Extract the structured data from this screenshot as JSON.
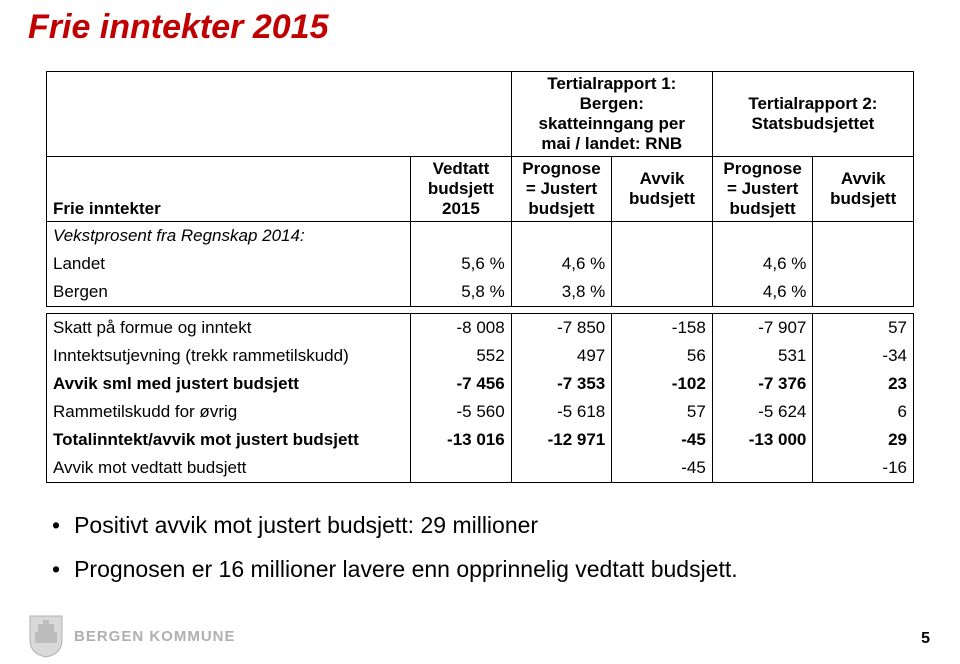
{
  "title": "Frie inntekter  2015",
  "table": {
    "header_row0": {
      "empty": "",
      "group1": "Tertialrapport 1:\nBergen:\nskatteinngang per\nmai  / landet: RNB",
      "group2": "Tertialrapport 2:\nStatsbudsjettet"
    },
    "header_row1": {
      "c0": "Frie inntekter",
      "c1": "Vedtatt\nbudsjett\n2015",
      "c2": "Prognose\n= Justert\nbudsjett",
      "c3": "Avvik\nbudsjett",
      "c4": "Prognose\n= Justert\nbudsjett",
      "c5": "Avvik\nbudsjett"
    },
    "rowsA": [
      {
        "label": "Vekstprosent fra Regnskap 2014:",
        "v": [
          "",
          "",
          "",
          "",
          ""
        ],
        "italic": true
      },
      {
        "label": "Landet",
        "v": [
          "5,6 %",
          "4,6 %",
          "",
          "4,6 %",
          ""
        ],
        "italic": false
      },
      {
        "label": "Bergen",
        "v": [
          "5,8 %",
          "3,8 %",
          "",
          "4,6 %",
          ""
        ],
        "italic": false
      }
    ],
    "rowsB": [
      {
        "label": "Skatt på formue og inntekt",
        "v": [
          "-8 008",
          "-7 850",
          "-158",
          "-7 907",
          "57"
        ],
        "bold": false
      },
      {
        "label": "Inntektsutjevning (trekk rammetilskudd)",
        "v": [
          "552",
          "497",
          "56",
          "531",
          "-34"
        ],
        "bold": false
      },
      {
        "label": "Avvik sml med justert budsjett",
        "v": [
          "-7 456",
          "-7 353",
          "-102",
          "-7 376",
          "23"
        ],
        "bold": true
      },
      {
        "label": "Rammetilskudd for øvrig",
        "v": [
          "-5 560",
          "-5 618",
          "57",
          "-5 624",
          "6"
        ],
        "bold": false
      },
      {
        "label": "Totalinntekt/avvik mot justert budsjett",
        "v": [
          "-13 016",
          "-12 971",
          "-45",
          "-13 000",
          "29"
        ],
        "bold": true
      },
      {
        "label": "Avvik mot vedtatt budsjett",
        "v": [
          "",
          "",
          "-45",
          "",
          "-16"
        ],
        "bold": false
      }
    ]
  },
  "bullets": [
    "Positivt avvik mot justert budsjett: 29 millioner",
    "Prognosen er 16 millioner lavere enn opprinnelig vedtatt budsjett."
  ],
  "footer": {
    "muni": "BERGEN KOMMUNE",
    "page": "5"
  },
  "colors": {
    "title": "#c00000",
    "muni_gray": "#b0b0b0"
  }
}
